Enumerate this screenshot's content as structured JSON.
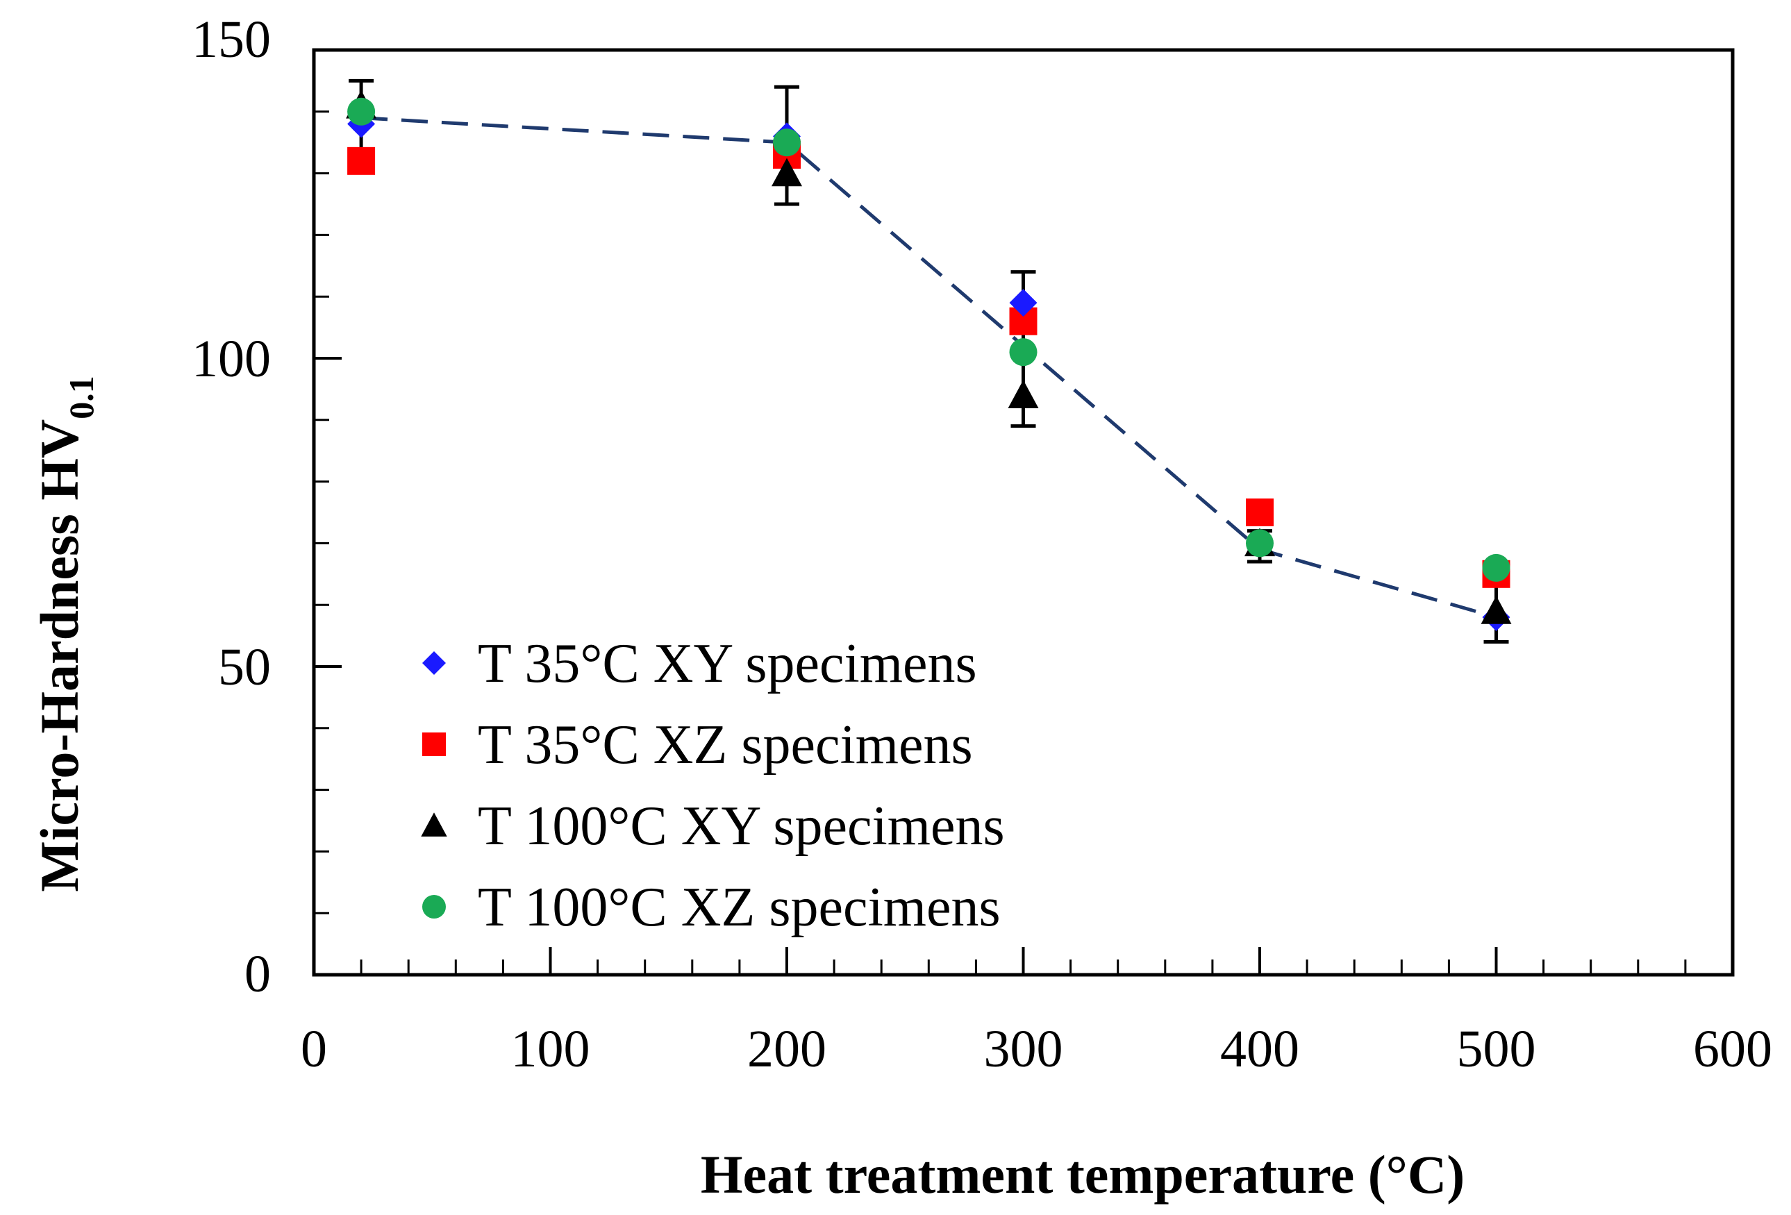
{
  "chart_data": {
    "type": "scatter",
    "title": "",
    "xlabel": "Heat treatment temperature (°C)",
    "ylabel_main": "Micro-Hardness  HV",
    "ylabel_sub": "0.1",
    "xlim": [
      0,
      600
    ],
    "ylim": [
      0,
      150
    ],
    "x_ticks": [
      0,
      100,
      200,
      300,
      400,
      500,
      600
    ],
    "y_ticks": [
      0,
      50,
      100,
      150
    ],
    "x_tick_labels": [
      "0",
      "100",
      "200",
      "300",
      "400",
      "500",
      "600"
    ],
    "y_tick_labels": [
      "0",
      "50",
      "100",
      "150"
    ],
    "grid": false,
    "legend_position": "bottom-left",
    "series": [
      {
        "name": "T 35°C XY specimens",
        "marker": "diamond",
        "color": "#1a1aff",
        "x": [
          20,
          200,
          300,
          400,
          500
        ],
        "y": [
          138,
          136,
          109,
          70,
          58
        ]
      },
      {
        "name": "T 35°C XZ specimens",
        "marker": "square",
        "color": "#ff0000",
        "x": [
          20,
          200,
          300,
          400,
          500
        ],
        "y": [
          132,
          133,
          106,
          75,
          65
        ]
      },
      {
        "name": "T 100°C XY specimens",
        "marker": "triangle",
        "color": "#000000",
        "x": [
          20,
          200,
          300,
          400,
          500
        ],
        "y": [
          141,
          130,
          94,
          70,
          59
        ]
      },
      {
        "name": "T 100°C XZ specimens",
        "marker": "circle",
        "color": "#1aaa55",
        "x": [
          20,
          200,
          300,
          400,
          500
        ],
        "y": [
          140,
          135,
          101,
          70,
          66
        ]
      }
    ],
    "error_bars": [
      {
        "x": 20,
        "low": 131,
        "high": 145
      },
      {
        "x": 200,
        "low": 125,
        "high": 144
      },
      {
        "x": 300,
        "low": 89,
        "high": 114
      },
      {
        "x": 400,
        "low": 67,
        "high": 72
      },
      {
        "x": 500,
        "low": 54,
        "high": 66
      }
    ],
    "trend_line": {
      "style": "dashed",
      "color": "#1f3a6e",
      "x": [
        20,
        200,
        300,
        400,
        500
      ],
      "y": [
        139,
        135,
        102,
        69,
        58
      ]
    }
  }
}
